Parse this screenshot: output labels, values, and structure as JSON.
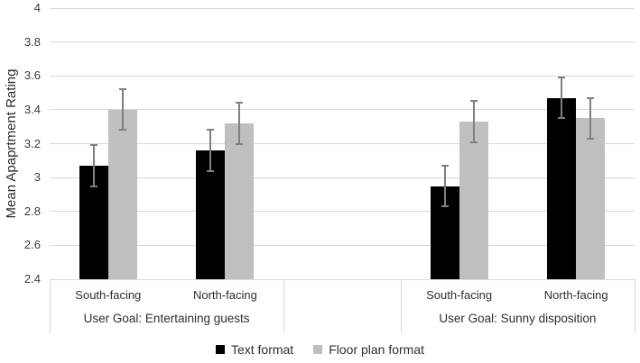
{
  "figure_title": "",
  "chart_data": {
    "type": "bar",
    "title": "",
    "xlabel": "",
    "ylabel": "Mean Apaprtment Rating",
    "ylim": [
      2.4,
      4.0
    ],
    "ytick_labels": [
      "4",
      "3.8",
      "3.6",
      "3.4",
      "3.2",
      "3",
      "2.8",
      "2.6",
      "2.4"
    ],
    "ytick_values": [
      4.0,
      3.8,
      3.6,
      3.4,
      3.2,
      3.0,
      2.8,
      2.6,
      2.4
    ],
    "grid": true,
    "legend_position": "bottom",
    "groups": [
      {
        "label": "User Goal: Entertaining guests",
        "categories": [
          "South-facing",
          "North-facing"
        ]
      },
      {
        "label": "User Goal: Sunny disposition",
        "categories": [
          "South-facing",
          "North-facing"
        ]
      }
    ],
    "series": [
      {
        "name": "Text format",
        "color": "#000000",
        "values": [
          3.07,
          3.16,
          2.95,
          3.47
        ],
        "errors": [
          0.12,
          0.12,
          0.12,
          0.12
        ]
      },
      {
        "name": "Floor plan format",
        "color": "#bfbfbf",
        "values": [
          3.4,
          3.32,
          3.33,
          3.35
        ],
        "errors": [
          0.12,
          0.12,
          0.12,
          0.12
        ]
      }
    ],
    "colors": {
      "gridline": "#d9d9d9",
      "axis_line": "#d9d9d9",
      "error_bar": "#7f7f7f",
      "text": "#2e2e2e"
    }
  }
}
